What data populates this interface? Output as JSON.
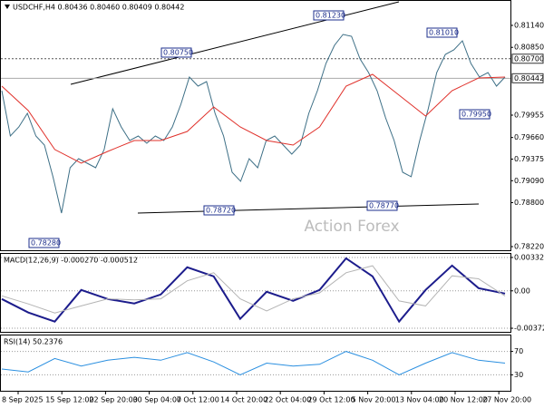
{
  "chart_data": [
    {
      "type": "line",
      "title": "USDCHF,H4 0.80436 0.80460 0.80409 0.80442",
      "watermark": "Action Forex",
      "x_labels": [
        "8 Sep 2025",
        "15 Sep 12:00",
        "22 Sep 20:00",
        "30 Sep 04:00",
        "7 Oct 12:00",
        "14 Oct 20:00",
        "22 Oct 04:00",
        "29 Oct 12:00",
        "5 Nov 20:00",
        "13 Nov 04:00",
        "20 Nov 12:00",
        "27 Nov 20:00"
      ],
      "series": [
        {
          "color": "#3d6f86",
          "values": [
            0.80278,
            0.7968,
            0.798,
            0.79979,
            0.7968,
            0.7956,
            0.79142,
            0.78663,
            0.79261,
            0.79381,
            0.79321,
            0.79261,
            0.79501,
            0.80039,
            0.798,
            0.7962,
            0.7968,
            0.79584,
            0.7968,
            0.7962,
            0.798,
            0.80099,
            0.80458,
            0.80338,
            0.80398,
            0.79979,
            0.7968,
            0.79201,
            0.79082,
            0.79381,
            0.79261,
            0.7962,
            0.7968,
            0.7956,
            0.79441,
            0.7956,
            0.79979,
            0.80278,
            0.80637,
            0.80877,
            0.8102,
            0.80996,
            0.80697,
            0.80518,
            0.80278,
            0.79919,
            0.7962,
            0.79201,
            0.79142,
            0.7962,
            0.80039,
            0.80518,
            0.80757,
            0.80817,
            0.80937,
            0.80637,
            0.80458,
            0.80518,
            0.80338,
            0.80458
          ]
        },
        {
          "color": "#e0302a",
          "values": [
            0.80338,
            0.80015,
            0.79501,
            0.79321,
            0.79477,
            0.7962,
            0.7962,
            0.7974,
            0.80063,
            0.798,
            0.7962,
            0.7956,
            0.798,
            0.80338,
            0.80494,
            0.80219,
            0.79943,
            0.80278,
            0.80446,
            0.80458
          ]
        }
      ],
      "ylim": [
        0.78172,
        0.81475
      ],
      "yticks": [
        {
          "value": 0.8114,
          "label": "0.81140"
        },
        {
          "value": 0.8085,
          "label": "0.80850"
        },
        {
          "value": 0.79955,
          "label": "0.79955"
        },
        {
          "value": 0.7966,
          "label": "0.79660"
        },
        {
          "value": 0.79375,
          "label": "0.79375"
        },
        {
          "value": 0.7909,
          "label": "0.79090"
        },
        {
          "value": 0.788,
          "label": "0.78800"
        },
        {
          "value": 0.7822,
          "label": "0.78220"
        }
      ],
      "levels": [
        {
          "value": 0.807,
          "label": "0.80700"
        },
        {
          "value": 0.80442,
          "label": "0.80442"
        }
      ],
      "annotations": [
        "0.80750",
        "0.81230",
        "0.81010",
        "0.79950",
        "0.78720",
        "0.78770",
        "0.78280"
      ]
    },
    {
      "type": "line",
      "title": "MACD(12,26,9) -0.000270 -0.000512",
      "series": [
        {
          "color": "#1c1c8c",
          "values": [
            -0.00081,
            -0.00216,
            -0.00306,
            9e-05,
            -0.00081,
            -0.00126,
            -0.00036,
            0.00234,
            0.00144,
            -0.00279,
            -9e-05,
            -0.00099,
            9e-05,
            0.00324,
            0.00144,
            -0.00306,
            9e-05,
            0.00252,
            0.00027,
            -0.00027
          ]
        },
        {
          "color": "#b4b4b4",
          "values": [
            -0.0005,
            -0.0013,
            -0.0022,
            -0.0015,
            -0.0008,
            -0.0009,
            -0.0008,
            0.001,
            0.0018,
            -0.0008,
            -0.002,
            -0.0008,
            -0.0002,
            0.0018,
            0.0025,
            -0.001,
            -0.0015,
            0.0015,
            0.0012,
            -0.00051
          ]
        }
      ],
      "ylim": [
        -0.00408,
        0.00377
      ],
      "yticks": [
        0.003321,
        {
          "value": 0,
          "label": "0.00"
        },
        -0.003723
      ]
    },
    {
      "type": "line",
      "title": "RSI(14) 50.2376",
      "series": [
        {
          "color": "#2a8fe0",
          "values": [
            40,
            35,
            58,
            45,
            55,
            60,
            55,
            68,
            52,
            30,
            50,
            45,
            48,
            70,
            55,
            30,
            50,
            68,
            55,
            50
          ]
        }
      ],
      "ylim": [
        2.8,
        98.8
      ],
      "yticks": [
        70,
        30
      ]
    }
  ]
}
